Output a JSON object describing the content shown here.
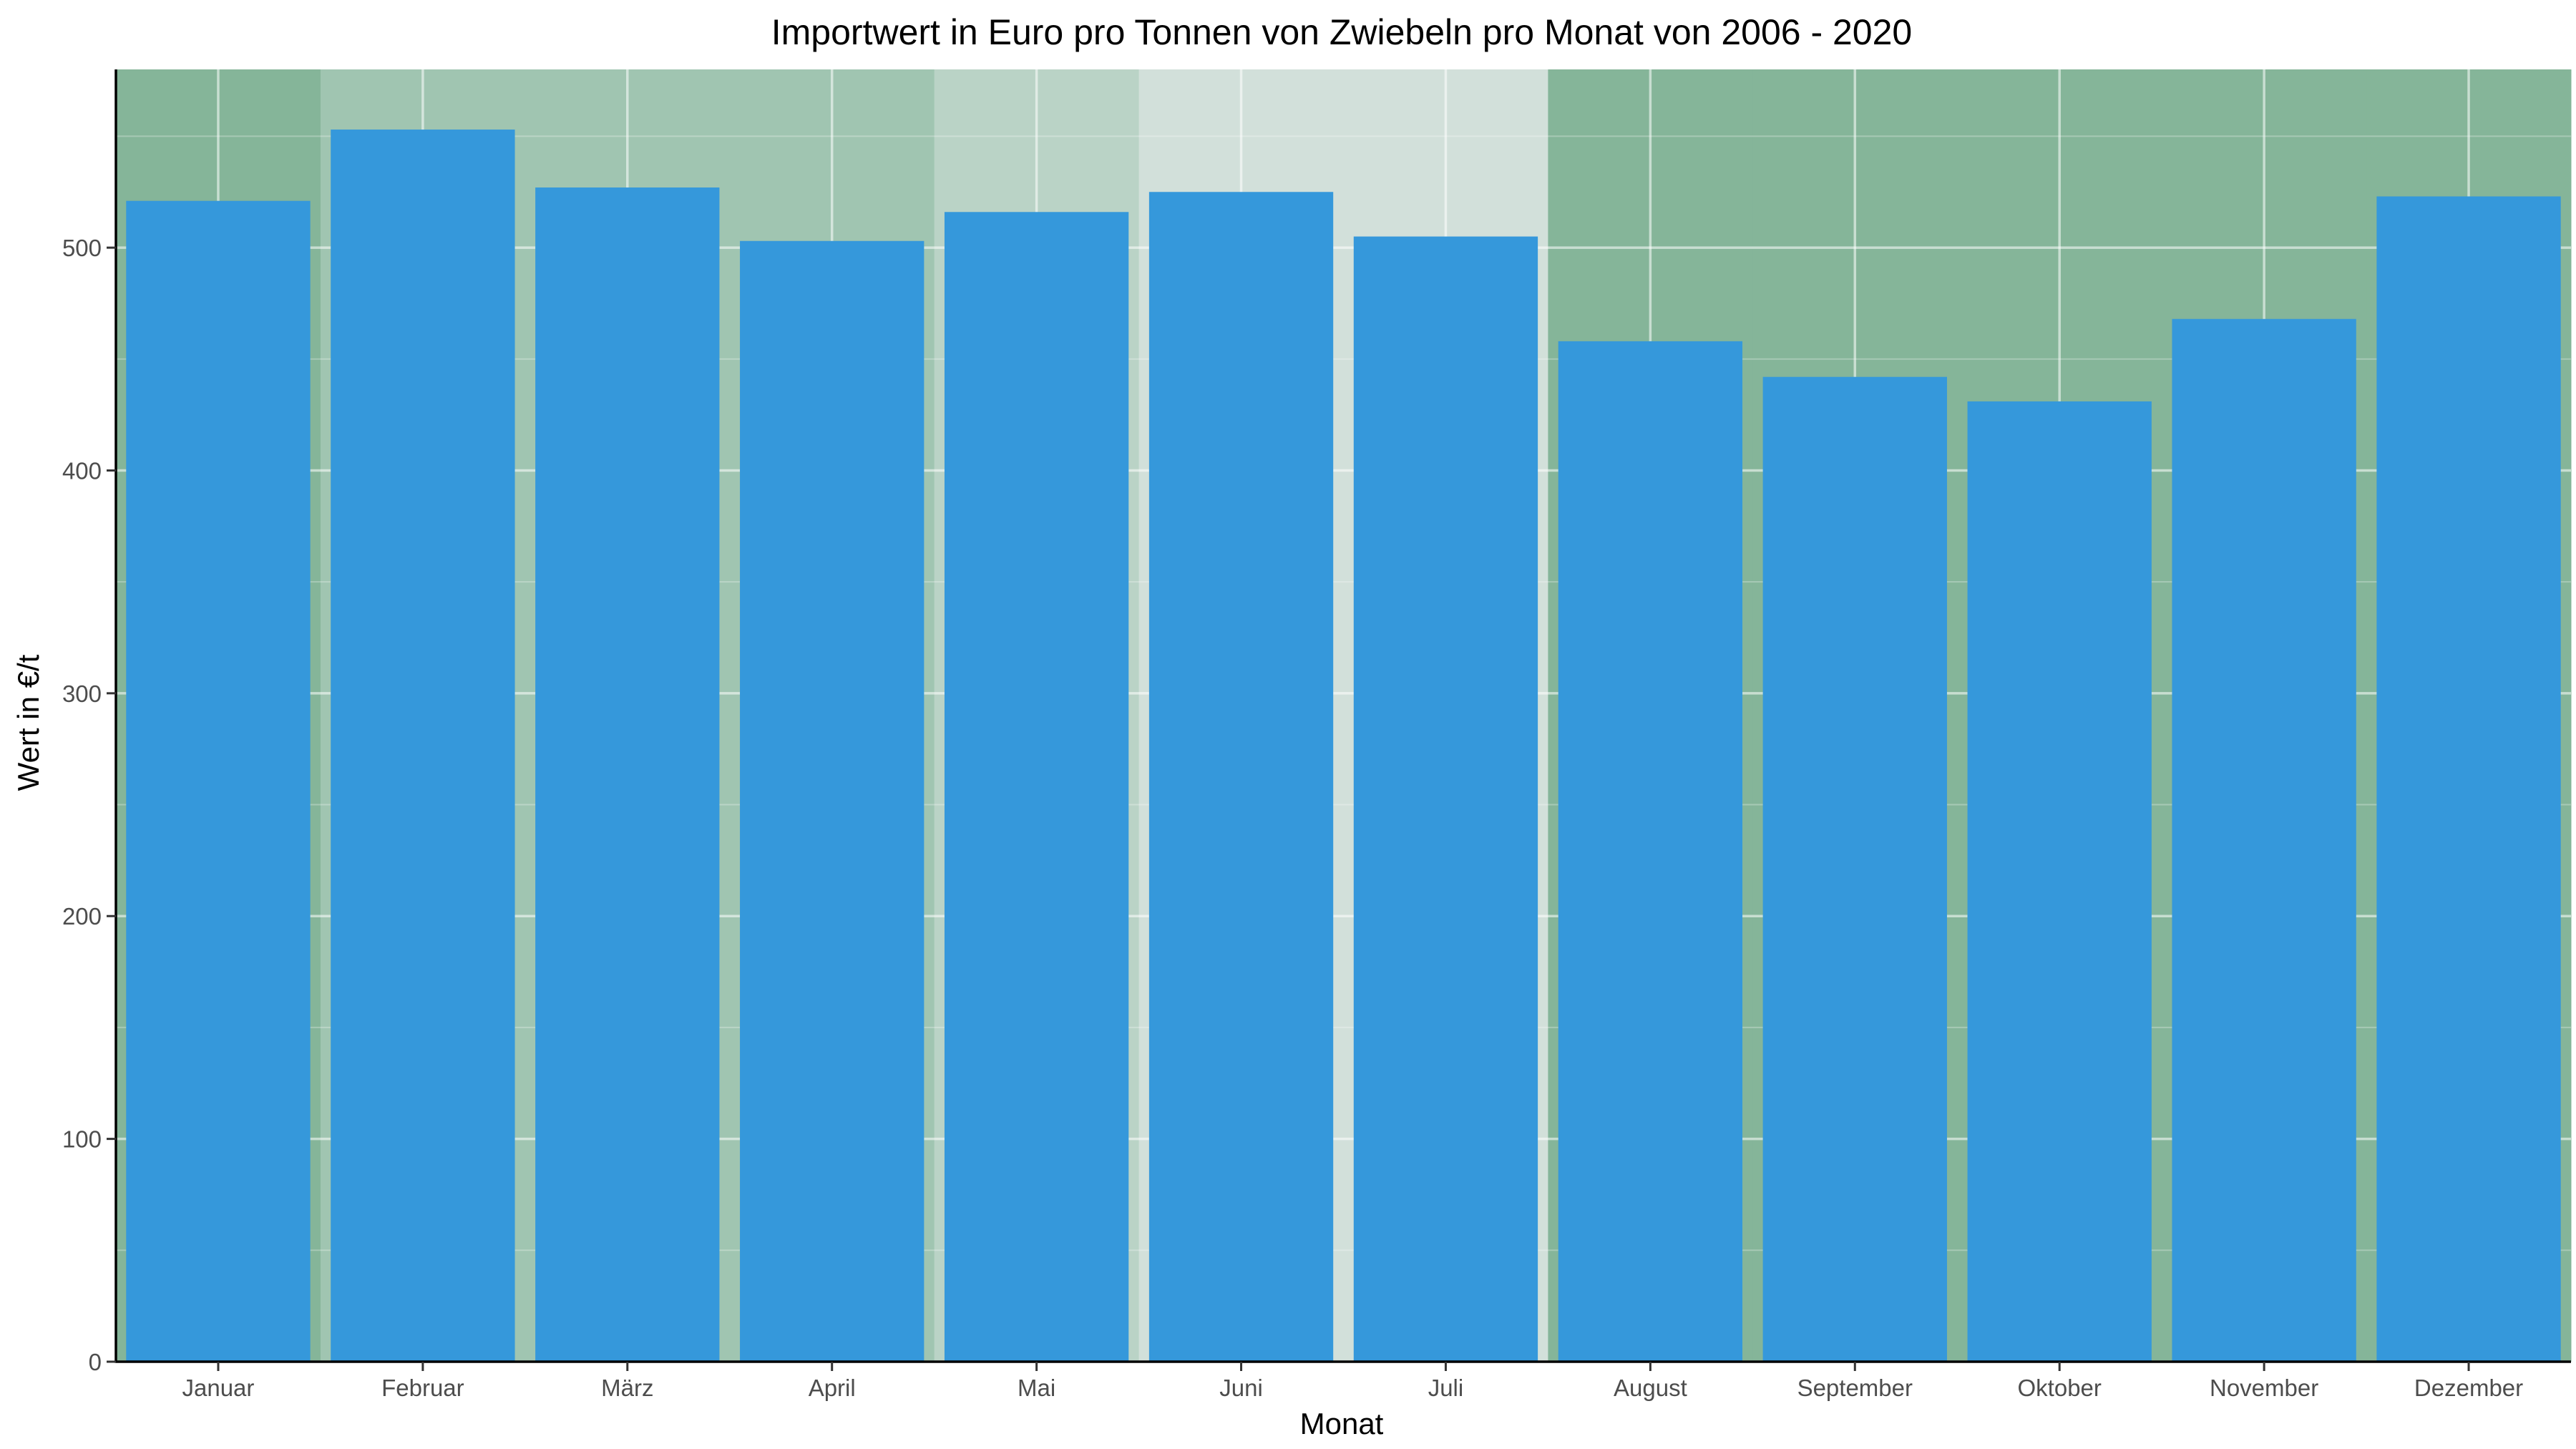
{
  "chart_data": {
    "type": "bar",
    "title": "Importwert in Euro pro Tonnen von Zwiebeln pro Monat von 2006 - 2020",
    "xlabel": "Monat",
    "ylabel": "Wert in €/t",
    "categories": [
      "Januar",
      "Februar",
      "März",
      "April",
      "Mai",
      "Juni",
      "Juli",
      "August",
      "September",
      "Oktober",
      "November",
      "Dezember"
    ],
    "values": [
      521,
      553,
      527,
      503,
      516,
      525,
      505,
      458,
      442,
      431,
      468,
      523
    ],
    "ylim": [
      0,
      580
    ],
    "yticks": [
      0,
      100,
      200,
      300,
      400,
      500
    ],
    "grid": true,
    "legend": "none",
    "colors": {
      "bar": "#3598db",
      "background_bands": [
        "#85b599",
        "#a0c5b1",
        "#a0c5b1",
        "#a0c5b1",
        "#bad3c6",
        "#d2e0da",
        "#d2e0da",
        "#85b599",
        "#85b599",
        "#85b599",
        "#85b599",
        "#85b599"
      ]
    }
  }
}
